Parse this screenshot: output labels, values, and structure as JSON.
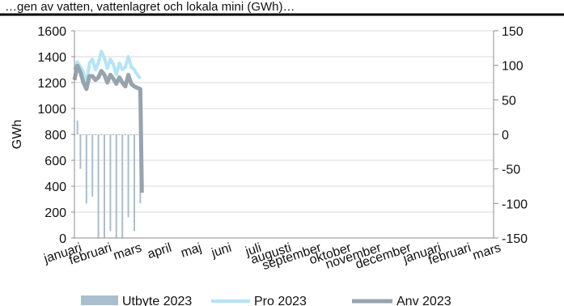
{
  "header": {
    "text": "…gen av vatten, vattenlagret och lokala mini (GWh)…"
  },
  "chart_data": {
    "type": "line",
    "title": "",
    "ylabel": "GWh",
    "ylabel_right": "",
    "ylim": [
      0,
      1600
    ],
    "ylim_right": [
      -150,
      150
    ],
    "yticks": [
      "0",
      "200",
      "400",
      "600",
      "800",
      "1000",
      "1200",
      "1400",
      "1600"
    ],
    "yticks_right": [
      "-150",
      "-100",
      "-50",
      "0",
      "50",
      "100",
      "150"
    ],
    "categories": [
      "januari",
      "februari",
      "mars",
      "april",
      "maj",
      "juni",
      "juli",
      "augusti",
      "september",
      "oktober",
      "november",
      "december",
      "januari",
      "februari",
      "mars"
    ],
    "grid": true,
    "legend_position": "bottom",
    "series": [
      {
        "name": "Utbyte 2023",
        "axis": "right",
        "color": "#a9bfcf",
        "x": [
          0.0,
          0.1,
          0.2,
          0.3,
          0.4,
          0.5,
          0.6,
          0.7,
          0.8,
          0.9,
          1.0,
          1.1,
          1.2,
          1.3,
          1.4,
          1.5,
          1.6,
          1.7,
          1.8,
          1.9,
          2.0,
          2.1,
          2.2
        ],
        "values": [
          0,
          20,
          -50,
          0,
          -100,
          0,
          -90,
          0,
          -150,
          0,
          -150,
          0,
          -140,
          0,
          -150,
          0,
          -150,
          0,
          -120,
          0,
          -140,
          0,
          -100
        ]
      },
      {
        "name": "Pro 2023",
        "axis": "left",
        "color": "#b3e4f7",
        "x": [
          0.0,
          0.1,
          0.2,
          0.3,
          0.4,
          0.5,
          0.6,
          0.7,
          0.8,
          0.9,
          1.0,
          1.1,
          1.2,
          1.3,
          1.4,
          1.5,
          1.6,
          1.7,
          1.8,
          1.9,
          2.0,
          2.1,
          2.2
        ],
        "values": [
          1300,
          1360,
          1320,
          1280,
          1180,
          1350,
          1380,
          1300,
          1350,
          1440,
          1390,
          1310,
          1380,
          1340,
          1260,
          1350,
          1300,
          1320,
          1400,
          1320,
          1300,
          1260,
          1230
        ]
      },
      {
        "name": "Anv 2023",
        "axis": "left",
        "color": "#97a3ad",
        "x": [
          0.0,
          0.1,
          0.2,
          0.3,
          0.4,
          0.5,
          0.6,
          0.7,
          0.8,
          0.9,
          1.0,
          1.1,
          1.2,
          1.3,
          1.4,
          1.5,
          1.6,
          1.7,
          1.8,
          1.9,
          2.0,
          2.1,
          2.2,
          2.25
        ],
        "values": [
          1220,
          1330,
          1280,
          1200,
          1150,
          1250,
          1250,
          1220,
          1240,
          1290,
          1260,
          1200,
          1260,
          1230,
          1190,
          1240,
          1200,
          1170,
          1260,
          1190,
          1170,
          1160,
          1150,
          350
        ]
      }
    ]
  }
}
